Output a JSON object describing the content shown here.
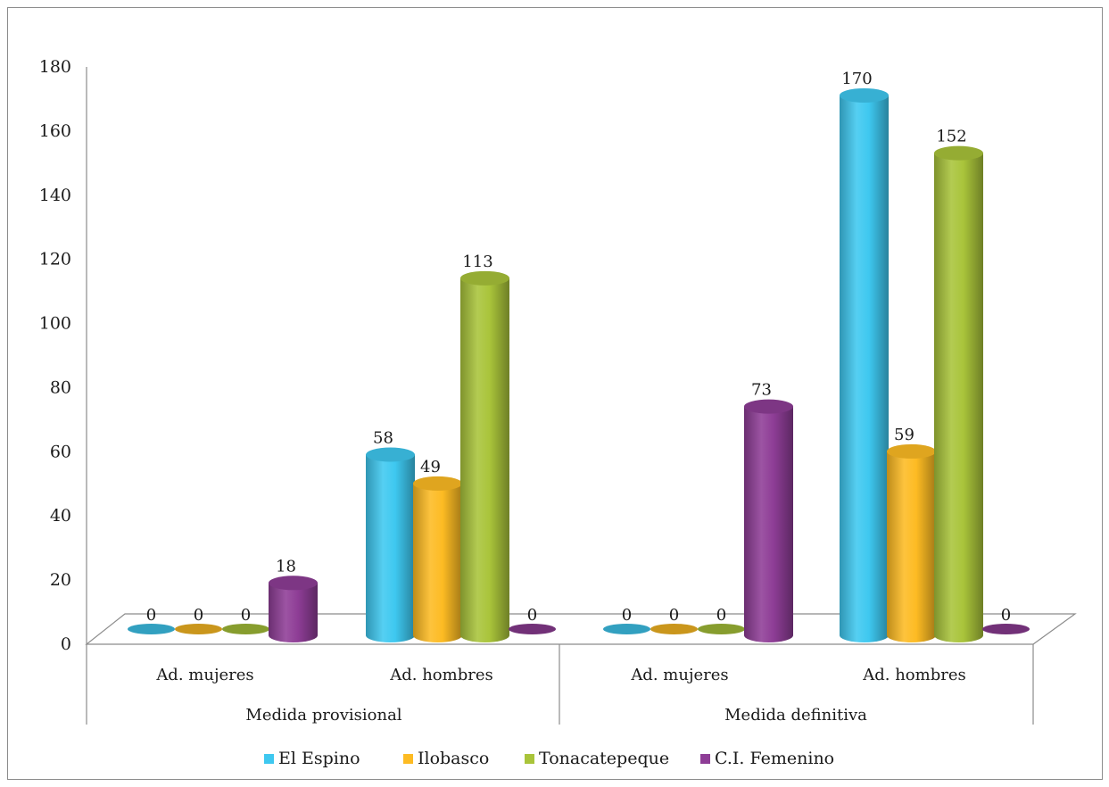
{
  "chart_data": {
    "type": "bar",
    "title": "",
    "xlabel": "",
    "ylabel": "",
    "ylim": [
      0,
      180
    ],
    "yticks": [
      0,
      20,
      40,
      60,
      80,
      100,
      120,
      140,
      160,
      180
    ],
    "grid": false,
    "legend_position": "bottom",
    "groups": [
      "Medida provisional",
      "Medida definitiva"
    ],
    "categories": [
      "Ad. mujeres",
      "Ad. hombres",
      "Ad. mujeres",
      "Ad. hombres"
    ],
    "series": [
      {
        "name": "El Espino",
        "color": "#3ec8f0",
        "values": [
          0,
          58,
          0,
          170
        ]
      },
      {
        "name": "Ilobasco",
        "color": "#fdbb23",
        "values": [
          0,
          49,
          0,
          59
        ]
      },
      {
        "name": "Tonacatepeque",
        "color": "#a9c43a",
        "values": [
          0,
          113,
          0,
          152
        ]
      },
      {
        "name": "C.I. Femenino",
        "color": "#8e3d96",
        "values": [
          18,
          0,
          73,
          0
        ]
      }
    ]
  }
}
